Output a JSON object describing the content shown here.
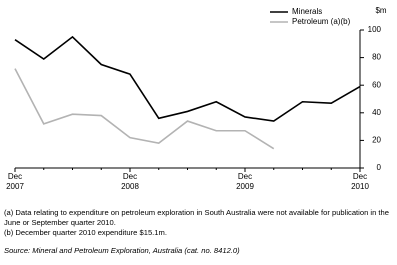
{
  "chart_data": {
    "type": "line",
    "y_axis_label": "$m",
    "categories": [
      "Dec 2007",
      null,
      null,
      null,
      "Dec 2008",
      null,
      null,
      null,
      "Dec 2009",
      null,
      null,
      null,
      "Dec 2010"
    ],
    "series": [
      {
        "name": "Minerals",
        "color": "#000000",
        "values": [
          93,
          79,
          95,
          75,
          68,
          36,
          41,
          48,
          37,
          34,
          48,
          47,
          59
        ]
      },
      {
        "name": "Petroleum (a)(b)",
        "color": "#b3b3b3",
        "values": [
          72,
          32,
          39,
          38,
          22,
          18,
          34,
          27,
          27,
          14,
          null,
          null,
          null
        ]
      }
    ],
    "ylim": [
      0,
      100
    ],
    "yticks": [
      0,
      20,
      40,
      60,
      80,
      100
    ],
    "footnotes": [
      "(a) Data relating to expenditure on petroleum exploration in South Australia were not available for publication in the June or September quarter 2010.",
      "(b) December quarter 2010 expenditure $15.1m."
    ],
    "source": "Source: Mineral and Petroleum Exploration, Australia (cat. no. 8412.0)"
  }
}
